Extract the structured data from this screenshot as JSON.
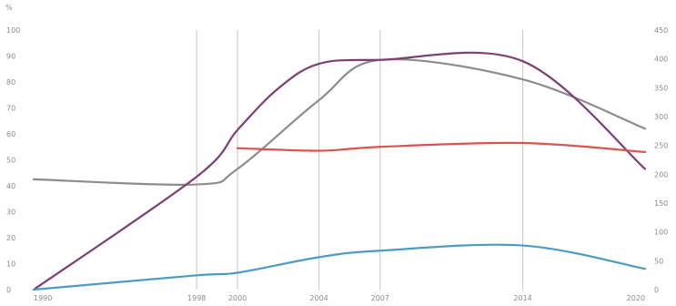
{
  "chart_data": {
    "type": "line",
    "title": "",
    "xlabel": "",
    "ylabel": "%",
    "x": [
      1990,
      1998,
      2000,
      2004,
      2007,
      2014,
      2020
    ],
    "x_ticks": [
      "1990",
      "1998",
      "2000",
      "2004",
      "2007",
      "2014",
      "2020"
    ],
    "vertical_gridlines_at": [
      1998,
      2000,
      2004,
      2007,
      2014
    ],
    "ylim": [
      0,
      100
    ],
    "y_ticks": [
      "0",
      "10",
      "20",
      "30",
      "40",
      "50",
      "60",
      "70",
      "80",
      "90",
      "100"
    ],
    "y2lim": [
      0,
      450
    ],
    "y2_ticks": [
      "0",
      "50",
      "100",
      "150",
      "200",
      "250",
      "300",
      "350",
      "400",
      "450"
    ],
    "grid": "vertical only",
    "legend": "none",
    "series": [
      {
        "color": "#8c8c8c",
        "axis": "left",
        "points": [
          [
            1990,
            42.5
          ],
          [
            1998,
            40.5
          ],
          [
            2000,
            46.5
          ],
          [
            2004,
            73.0
          ],
          [
            2007,
            88.5
          ],
          [
            2014,
            81.0
          ],
          [
            2020,
            62.0
          ]
        ]
      },
      {
        "color": "#7d3f72",
        "axis": "left",
        "points": [
          [
            1990,
            0
          ],
          [
            1998,
            43.5
          ],
          [
            2000,
            61.5
          ],
          [
            2002,
            77.5
          ],
          [
            2004,
            87.0
          ],
          [
            2007,
            88.5
          ],
          [
            2014,
            88.0
          ],
          [
            2020,
            46.5
          ]
        ]
      },
      {
        "color": "#d9534f",
        "axis": "left",
        "points": [
          [
            2000,
            54.5
          ],
          [
            2004,
            53.5
          ],
          [
            2007,
            55.0
          ],
          [
            2014,
            56.5
          ],
          [
            2020,
            53.0
          ]
        ]
      },
      {
        "color": "#4a9cc4",
        "axis": "left",
        "points": [
          [
            1990,
            0
          ],
          [
            1998,
            5.5
          ],
          [
            2000,
            6.5
          ],
          [
            2004,
            12.5
          ],
          [
            2007,
            15.0
          ],
          [
            2014,
            17.0
          ],
          [
            2020,
            8.0
          ]
        ]
      }
    ]
  }
}
